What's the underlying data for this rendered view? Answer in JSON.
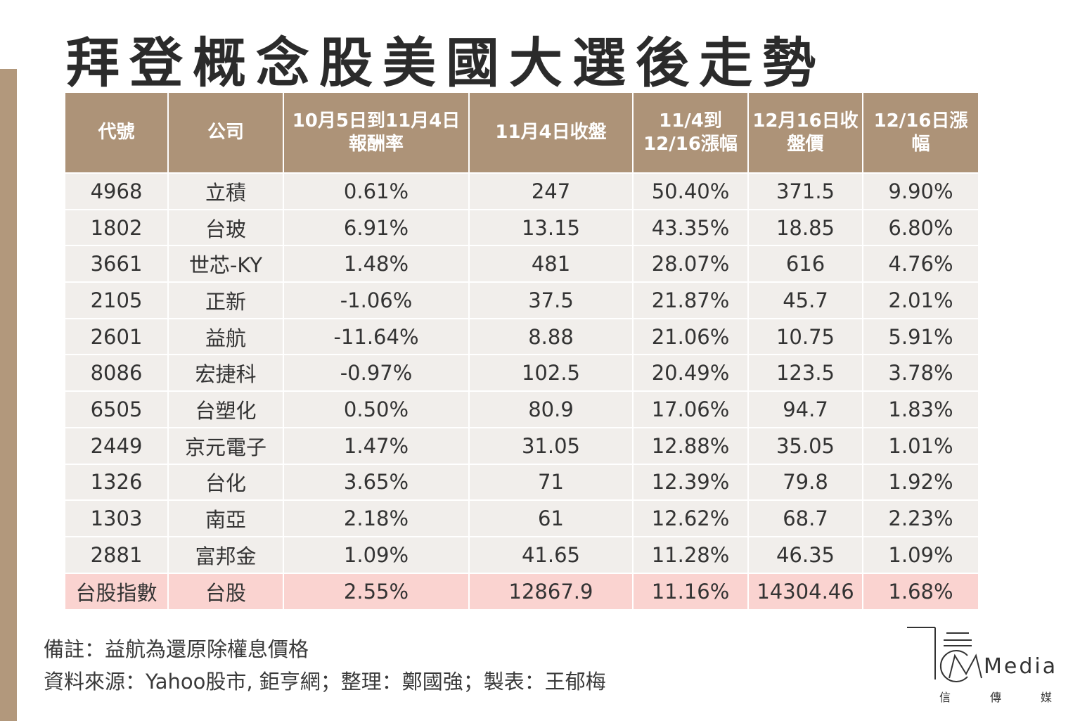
{
  "title": "拜登概念股美國大選後走勢",
  "table": {
    "headers": [
      "代號",
      "公司",
      "10月5日到11月4日報酬率",
      "11月4日收盤",
      "11/4到12/16漲幅",
      "12月16日收盤價",
      "12/16日漲幅"
    ],
    "header_lines": [
      [
        "代號"
      ],
      [
        "公司"
      ],
      [
        "10月5日到11月4日",
        "報酬率"
      ],
      [
        "11月4日收盤"
      ],
      [
        "11/4到",
        "12/16漲幅"
      ],
      [
        "12月16日收",
        "盤價"
      ],
      [
        "12/16日漲",
        "幅"
      ]
    ],
    "rows": [
      [
        "4968",
        "立積",
        "0.61%",
        "247",
        "50.40%",
        "371.5",
        "9.90%"
      ],
      [
        "1802",
        "台玻",
        "6.91%",
        "13.15",
        "43.35%",
        "18.85",
        "6.80%"
      ],
      [
        "3661",
        "世芯-KY",
        "1.48%",
        "481",
        "28.07%",
        "616",
        "4.76%"
      ],
      [
        "2105",
        "正新",
        "-1.06%",
        "37.5",
        "21.87%",
        "45.7",
        "2.01%"
      ],
      [
        "2601",
        "益航",
        "-11.64%",
        "8.88",
        "21.06%",
        "10.75",
        "5.91%"
      ],
      [
        "8086",
        "宏捷科",
        "-0.97%",
        "102.5",
        "20.49%",
        "123.5",
        "3.78%"
      ],
      [
        "6505",
        "台塑化",
        "0.50%",
        "80.9",
        "17.06%",
        "94.7",
        "1.83%"
      ],
      [
        "2449",
        "京元電子",
        "1.47%",
        "31.05",
        "12.88%",
        "35.05",
        "1.01%"
      ],
      [
        "1326",
        "台化",
        "3.65%",
        "71",
        "12.39%",
        "79.8",
        "1.92%"
      ],
      [
        "1303",
        "南亞",
        "2.18%",
        "61",
        "12.62%",
        "68.7",
        "2.23%"
      ],
      [
        "2881",
        "富邦金",
        "1.09%",
        "41.65",
        "11.28%",
        "46.35",
        "1.09%"
      ],
      [
        "台股指數",
        "台股",
        "2.55%",
        "12867.9",
        "11.16%",
        "14304.46",
        "1.68%"
      ]
    ],
    "highlight_row_index": 11
  },
  "notes": {
    "line1": "備註：益航為還原除權息價格",
    "line2": "資料來源：Yahoo股市, 鉅亨網；整理：鄭國強；製表：王郁梅"
  },
  "logo": {
    "letters": "Media",
    "cn_chars": [
      "信",
      "傳",
      "媒"
    ]
  },
  "colors": {
    "header_bg": "#ad9378",
    "row_bg": "#f1eeeb",
    "highlight_bg": "#fad3d0",
    "side_bar": "#b2987c"
  }
}
